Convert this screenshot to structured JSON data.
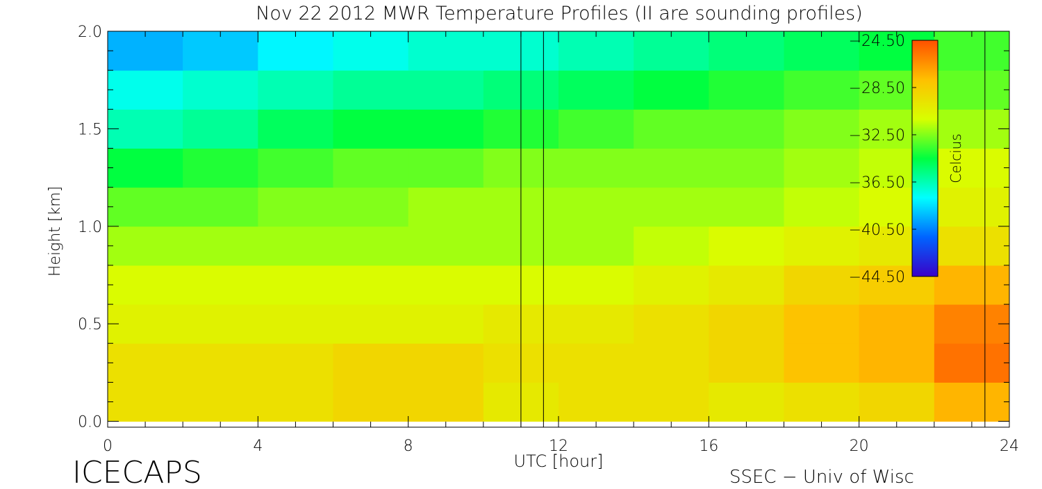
{
  "chart_data": {
    "type": "heatmap",
    "title": "Nov 22 2012 MWR Temperature Profiles (II are sounding profiles)",
    "x_label": "UTC [hour]",
    "y_label": "Height [km]",
    "footer_left": "ICECAPS",
    "footer_right": "SSEC − Univ of Wisc",
    "x": [
      1,
      3,
      5,
      7,
      9,
      11,
      13,
      15,
      17,
      19,
      21,
      23
    ],
    "y": [
      0.1,
      0.3,
      0.5,
      0.7,
      0.9,
      1.1,
      1.3,
      1.5,
      1.7,
      1.9
    ],
    "z": [
      [
        -29.5,
        -29.5,
        -29.5,
        -29,
        -29,
        -30,
        -29.5,
        -29.5,
        -30,
        -29.5,
        -29,
        -27.5
      ],
      [
        -29.5,
        -29.5,
        -29.5,
        -29,
        -29,
        -29.5,
        -29.5,
        -29.5,
        -29,
        -28,
        -27.5,
        -25.5
      ],
      [
        -30.5,
        -30.5,
        -30.5,
        -30.5,
        -30.5,
        -30,
        -30,
        -29.5,
        -29,
        -28,
        -27.5,
        -26
      ],
      [
        -31,
        -31,
        -31,
        -31,
        -31,
        -31,
        -31,
        -30.5,
        -30,
        -29,
        -28.5,
        -27.5
      ],
      [
        -32,
        -32,
        -32,
        -32,
        -32,
        -32,
        -32,
        -31.5,
        -31,
        -30.5,
        -30,
        -29.5
      ],
      [
        -33,
        -33,
        -32.5,
        -32.5,
        -32,
        -32,
        -32,
        -32,
        -32,
        -31.5,
        -31,
        -30.5
      ],
      [
        -34.5,
        -34,
        -33.5,
        -33,
        -33,
        -32.5,
        -32.5,
        -32.5,
        -32.5,
        -32,
        -31.5,
        -31
      ],
      [
        -36.5,
        -36,
        -35,
        -34.5,
        -34.5,
        -34,
        -33.5,
        -33,
        -33,
        -32.5,
        -32,
        -32
      ],
      [
        -37.5,
        -37,
        -36.5,
        -36,
        -36,
        -35.5,
        -35,
        -34.5,
        -34,
        -33.5,
        -33,
        -33
      ],
      [
        -39.5,
        -39,
        -38,
        -37.5,
        -37,
        -37,
        -36.5,
        -36,
        -35.5,
        -35,
        -34.5,
        -33.5
      ]
    ],
    "sounding_times": [
      11,
      11.6,
      23.35
    ],
    "xlim": [
      0,
      24
    ],
    "xticks": [
      0,
      4,
      8,
      12,
      16,
      20,
      24
    ],
    "ylim": [
      -0.03,
      2.0
    ],
    "yticks": [
      {
        "value": 0,
        "label": "0.0"
      },
      {
        "value": 0.5,
        "label": "0.5"
      },
      {
        "value": 1,
        "label": "1.0"
      },
      {
        "value": 1.5,
        "label": "1.5"
      },
      {
        "value": 2,
        "label": "2.0"
      }
    ],
    "colorbar": {
      "label": "Celcius",
      "lim": [
        -44.5,
        -24.5
      ],
      "ticks": [
        {
          "value": -24.5,
          "label": "−24.50"
        },
        {
          "value": -28.5,
          "label": "−28.50"
        },
        {
          "value": -32.5,
          "label": "−32.50"
        },
        {
          "value": -36.5,
          "label": "−36.50"
        },
        {
          "value": -40.5,
          "label": "−40.50"
        },
        {
          "value": -44.5,
          "label": "−44.50"
        }
      ],
      "colors": [
        "#3a00c8",
        "#0064ff",
        "#00ffff",
        "#00ff40",
        "#d8ff00",
        "#ffc000",
        "#ff5000"
      ]
    }
  }
}
